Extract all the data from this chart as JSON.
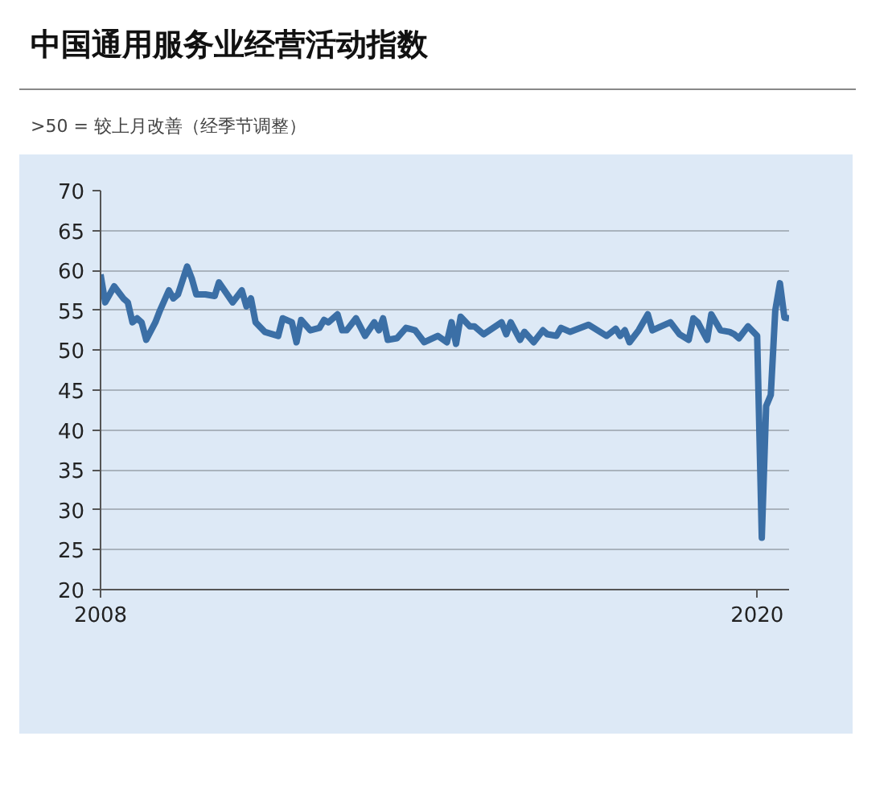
{
  "chart_data": {
    "type": "line",
    "title": "中国通用服务业经营活动指数",
    "subtitle": ">50 = 较上月改善（经季节调整）",
    "x": [
      "2008-01",
      "2008-02",
      "2008-04",
      "2008-06",
      "2008-07",
      "2008-08",
      "2008-09",
      "2008-10",
      "2008-11",
      "2009-01",
      "2009-02",
      "2009-04",
      "2009-05",
      "2009-06",
      "2009-08",
      "2009-09",
      "2009-10",
      "2009-12",
      "2010-02",
      "2010-03",
      "2010-06",
      "2010-08",
      "2010-09",
      "2010-10",
      "2010-11",
      "2011-01",
      "2011-04",
      "2011-05",
      "2011-07",
      "2011-08",
      "2011-09",
      "2011-11",
      "2012-01",
      "2012-02",
      "2012-03",
      "2012-05",
      "2012-06",
      "2012-07",
      "2012-09",
      "2012-11",
      "2013-01",
      "2013-02",
      "2013-03",
      "2013-04",
      "2013-06",
      "2013-08",
      "2013-10",
      "2013-12",
      "2014-03",
      "2014-05",
      "2014-06",
      "2014-07",
      "2014-08",
      "2014-10",
      "2014-11",
      "2015-01",
      "2015-05",
      "2015-06",
      "2015-07",
      "2015-09",
      "2015-10",
      "2015-12",
      "2016-02",
      "2016-03",
      "2016-05",
      "2016-06",
      "2016-08",
      "2016-12",
      "2017-04",
      "2017-06",
      "2017-07",
      "2017-08",
      "2017-09",
      "2017-11",
      "2018-01",
      "2018-02",
      "2018-04",
      "2018-06",
      "2018-08",
      "2018-10",
      "2018-11",
      "2018-12",
      "2019-02",
      "2019-03",
      "2019-05",
      "2019-07",
      "2019-08",
      "2019-09",
      "2019-11",
      "2020-01",
      "2020-02",
      "2020-03",
      "2020-04",
      "2020-05",
      "2020-06",
      "2020-07",
      "2020-08"
    ],
    "series": [
      {
        "color": "#3b6fa6",
        "values": [
          59.5,
          56,
          58,
          56.5,
          56,
          53.5,
          54,
          53.5,
          51.3,
          53.5,
          55,
          57.5,
          56.5,
          57,
          60.5,
          59,
          57,
          57,
          56.8,
          58.5,
          56,
          57.5,
          55.5,
          56.5,
          53.5,
          52.3,
          51.8,
          54,
          53.5,
          51,
          53.8,
          52.5,
          52.8,
          53.8,
          53.5,
          54.5,
          52.5,
          52.5,
          54,
          51.8,
          53.5,
          52.5,
          54,
          51.3,
          51.5,
          52.8,
          52.5,
          51,
          51.8,
          51,
          53.5,
          50.8,
          54.2,
          53,
          53,
          52,
          53.5,
          52,
          53.5,
          51.3,
          52.3,
          51,
          52.5,
          52,
          51.8,
          52.8,
          52.3,
          53.2,
          51.8,
          52.7,
          51.8,
          52.5,
          51,
          52.5,
          54.5,
          52.5,
          53,
          53.5,
          52,
          51.3,
          54,
          53.5,
          51.3,
          54.5,
          52.5,
          52.3,
          52,
          51.5,
          53,
          51.8,
          26.5,
          43,
          44.4,
          55,
          58.4,
          54.1,
          54
        ]
      }
    ],
    "xlim": [
      "2008-01",
      "2020-08"
    ],
    "xticks": [
      {
        "value": "2008-01",
        "label": "2008"
      },
      {
        "value": "2020-01",
        "label": "2020"
      }
    ],
    "ylim": [
      20,
      70
    ],
    "yticks": [
      20,
      25,
      30,
      35,
      40,
      45,
      50,
      55,
      60,
      65,
      70
    ],
    "grid": "y"
  }
}
